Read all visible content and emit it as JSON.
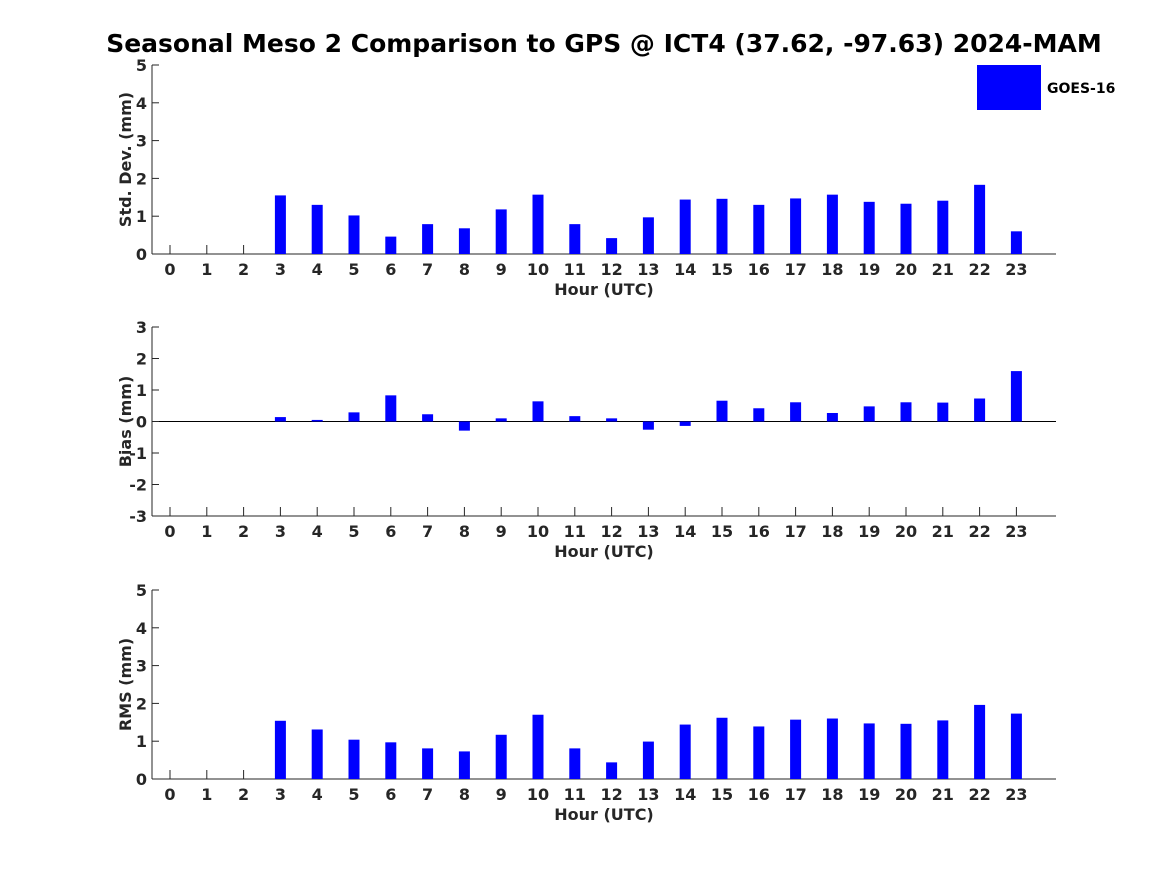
{
  "title": "Seasonal Meso 2 Comparison to GPS @ ICT4 (37.62, -97.63) 2024-MAM",
  "legend": {
    "label": "GOES-16",
    "color": "#0000ff",
    "placement": "top-right"
  },
  "chart_data": [
    {
      "type": "bar",
      "name": "std-dev",
      "xlabel": "Hour (UTC)",
      "ylabel": "Std. Dev. (mm)",
      "ylim": [
        0,
        5
      ],
      "yticks": [
        0,
        1,
        2,
        3,
        4,
        5
      ],
      "categories": [
        "0",
        "1",
        "2",
        "3",
        "4",
        "5",
        "6",
        "7",
        "8",
        "9",
        "10",
        "11",
        "12",
        "13",
        "14",
        "15",
        "16",
        "17",
        "18",
        "19",
        "20",
        "21",
        "22",
        "23"
      ],
      "values": [
        null,
        null,
        null,
        1.55,
        1.3,
        1.02,
        0.46,
        0.79,
        0.68,
        1.18,
        1.57,
        0.79,
        0.42,
        0.97,
        1.44,
        1.46,
        1.3,
        1.47,
        1.57,
        1.38,
        1.33,
        1.41,
        1.83,
        0.6
      ],
      "series_name": "GOES-16"
    },
    {
      "type": "bar",
      "name": "bias",
      "xlabel": "Hour (UTC)",
      "ylabel": "Bias (mm)",
      "ylim": [
        -3,
        3
      ],
      "yticks": [
        -3,
        -2,
        -1,
        0,
        1,
        2,
        3
      ],
      "categories": [
        "0",
        "1",
        "2",
        "3",
        "4",
        "5",
        "6",
        "7",
        "8",
        "9",
        "10",
        "11",
        "12",
        "13",
        "14",
        "15",
        "16",
        "17",
        "18",
        "19",
        "20",
        "21",
        "22",
        "23"
      ],
      "values": [
        null,
        null,
        null,
        0.14,
        0.05,
        0.29,
        0.83,
        0.23,
        -0.29,
        0.1,
        0.64,
        0.17,
        0.1,
        -0.26,
        -0.14,
        0.66,
        0.42,
        0.61,
        0.27,
        0.48,
        0.61,
        0.6,
        0.73,
        1.6
      ],
      "series_name": "GOES-16"
    },
    {
      "type": "bar",
      "name": "rms",
      "xlabel": "Hour (UTC)",
      "ylabel": "RMS (mm)",
      "ylim": [
        0,
        5
      ],
      "yticks": [
        0,
        1,
        2,
        3,
        4,
        5
      ],
      "categories": [
        "0",
        "1",
        "2",
        "3",
        "4",
        "5",
        "6",
        "7",
        "8",
        "9",
        "10",
        "11",
        "12",
        "13",
        "14",
        "15",
        "16",
        "17",
        "18",
        "19",
        "20",
        "21",
        "22",
        "23"
      ],
      "values": [
        null,
        null,
        null,
        1.54,
        1.31,
        1.04,
        0.97,
        0.81,
        0.73,
        1.17,
        1.7,
        0.81,
        0.44,
        0.99,
        1.44,
        1.62,
        1.39,
        1.57,
        1.6,
        1.47,
        1.46,
        1.55,
        1.96,
        1.73
      ],
      "series_name": "GOES-16"
    }
  ]
}
